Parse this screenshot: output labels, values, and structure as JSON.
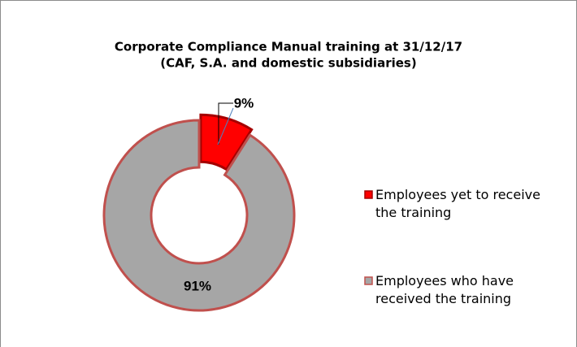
{
  "chart_data": {
    "type": "donut",
    "title": [
      "Corporate Compliance Manual training at 31/12/17",
      "(CAF, S.A. and domestic subsidiaries)"
    ],
    "categories": [
      "Employees yet to receive the training",
      "Employees who have received the training"
    ],
    "values": [
      9,
      91
    ],
    "value_labels": [
      "9%",
      "91%"
    ],
    "colors": [
      "#ff0000",
      "#a6a6a6"
    ],
    "legend": "right"
  }
}
